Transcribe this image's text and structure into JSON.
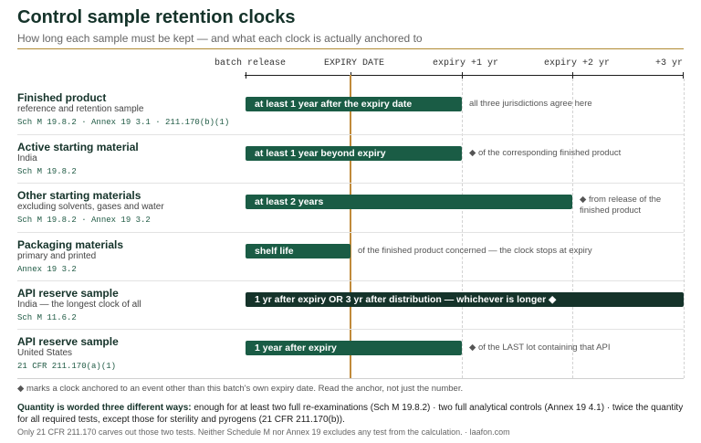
{
  "title": "Control sample retention clocks",
  "subtitle": "How long each sample must be kept — and what each clock is actually anchored to",
  "colors": {
    "bar": "#1a5c45",
    "bar_dark": "#15332a",
    "expiry_line": "#c08a3a",
    "accent_rule": "#b08a32",
    "reference_text": "#1f5a44"
  },
  "chart_data": {
    "type": "bar",
    "orientation": "horizontal timeline",
    "x_unit": "years relative to expiry date",
    "xlim": [
      -1,
      3
    ],
    "grid": true,
    "ticks": [
      {
        "value": -1,
        "label": "batch release"
      },
      {
        "value": 0,
        "label": "EXPIRY DATE"
      },
      {
        "value": 1,
        "label": "expiry +1 yr"
      },
      {
        "value": 2,
        "label": "expiry +2 yr"
      },
      {
        "value": 3,
        "label": "+3 yr"
      }
    ],
    "rows": [
      {
        "name": "Finished product",
        "sub": "reference and retention sample",
        "refs": "Sch M 19.8.2 · Annex 19 3.1 · 211.170(b)(1)",
        "start": -1,
        "end": 1,
        "bar_label": "at least 1 year after the expiry date",
        "note": "all three jurisdictions agree here",
        "style": "normal"
      },
      {
        "name": "Active starting material",
        "sub": "India",
        "refs": "Sch M 19.8.2",
        "start": -1,
        "end": 1,
        "bar_label": "at least 1 year beyond expiry",
        "note": "◆ of the corresponding finished product",
        "style": "normal"
      },
      {
        "name": "Other starting materials",
        "sub": "excluding solvents, gases and water",
        "refs": "Sch M 19.8.2 · Annex 19 3.2",
        "start": -1,
        "end": 2,
        "bar_label": "at least 2 years",
        "note": "◆ from release of the finished product",
        "style": "normal"
      },
      {
        "name": "Packaging materials",
        "sub": "primary and printed",
        "refs": "Annex 19 3.2",
        "start": -1,
        "end": 0,
        "bar_label": "shelf life",
        "note": "of the finished product concerned — the clock stops at expiry",
        "style": "normal"
      },
      {
        "name": "API reserve sample",
        "sub": "India — the longest clock of all",
        "refs": "Sch M 11.6.2",
        "start": -1,
        "end": 3,
        "bar_label": "1 yr after expiry OR 3 yr after distribution — whichever is longer ◆",
        "note": "",
        "style": "dark"
      },
      {
        "name": "API reserve sample",
        "sub": "United States",
        "refs": "21 CFR 211.170(a)(1)",
        "start": -1,
        "end": 1,
        "bar_label": "1 year after expiry",
        "note": "◆ of the LAST lot containing that API",
        "style": "normal"
      }
    ]
  },
  "footnote": "◆ marks a clock anchored to an event other than this batch's own expiry date. Read the anchor, not just the number.",
  "quantity": {
    "lead": "Quantity is worded three different ways:",
    "text": " enough for at least two full re-examinations (Sch M 19.8.2) · two full analytical controls (Annex 19 4.1) · twice the quantity for all required tests, except those for sterility and pyrogens (21 CFR 211.170(b))."
  },
  "source": "Only 21 CFR 211.170 carves out those two tests. Neither Schedule M nor Annex 19 excludes any test from the calculation. · laafon.com"
}
